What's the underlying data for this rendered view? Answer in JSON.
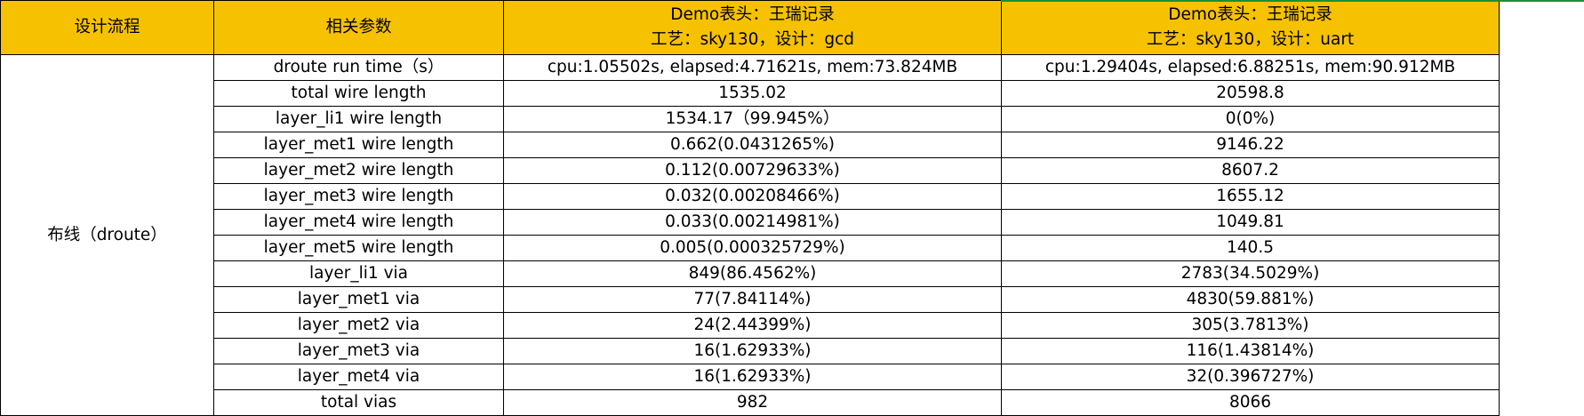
{
  "header": {
    "col1": "设计流程",
    "col2": "相关参数",
    "col3_line1": "Demo表头：王瑞记录",
    "col3_line2": "工艺：sky130，设计：gcd",
    "col4_line1": "Demo表头：王瑞记录",
    "col4_line2": "工艺：sky130，设计：uart"
  },
  "stage_label": "布线（droute）",
  "rows": [
    {
      "param": "droute run time（s）",
      "gcd": "cpu:1.05502s, elapsed:4.71621s, mem:73.824MB",
      "uart": "cpu:1.29404s, elapsed:6.88251s, mem:90.912MB"
    },
    {
      "param": "total wire length",
      "gcd": "1535.02",
      "uart": "20598.8"
    },
    {
      "param": "layer_li1 wire length",
      "gcd": "1534.17（99.945%）",
      "uart": "0(0%)"
    },
    {
      "param": "layer_met1 wire length",
      "gcd": "0.662(0.0431265%)",
      "uart": "9146.22"
    },
    {
      "param": "layer_met2 wire length",
      "gcd": "0.112(0.00729633%)",
      "uart": "8607.2"
    },
    {
      "param": "layer_met3 wire length",
      "gcd": "0.032(0.00208466%)",
      "uart": "1655.12"
    },
    {
      "param": "layer_met4 wire length",
      "gcd": "0.033(0.00214981%)",
      "uart": "1049.81"
    },
    {
      "param": "layer_met5 wire length",
      "gcd": "0.005(0.000325729%)",
      "uart": "140.5"
    },
    {
      "param": "layer_li1 via",
      "gcd": "849(86.4562%)",
      "uart": "2783(34.5029%)"
    },
    {
      "param": "layer_met1 via",
      "gcd": "77(7.84114%)",
      "uart": "4830(59.881%)"
    },
    {
      "param": "layer_met2 via",
      "gcd": "24(2.44399%)",
      "uart": "305(3.7813%)"
    },
    {
      "param": "layer_met3 via",
      "gcd": "16(1.62933%)",
      "uart": "116(1.43814%)"
    },
    {
      "param": "layer_met4 via",
      "gcd": "16(1.62933%)",
      "uart": "32(0.396727%)"
    },
    {
      "param": "total vias",
      "gcd": "982",
      "uart": "8066"
    }
  ]
}
